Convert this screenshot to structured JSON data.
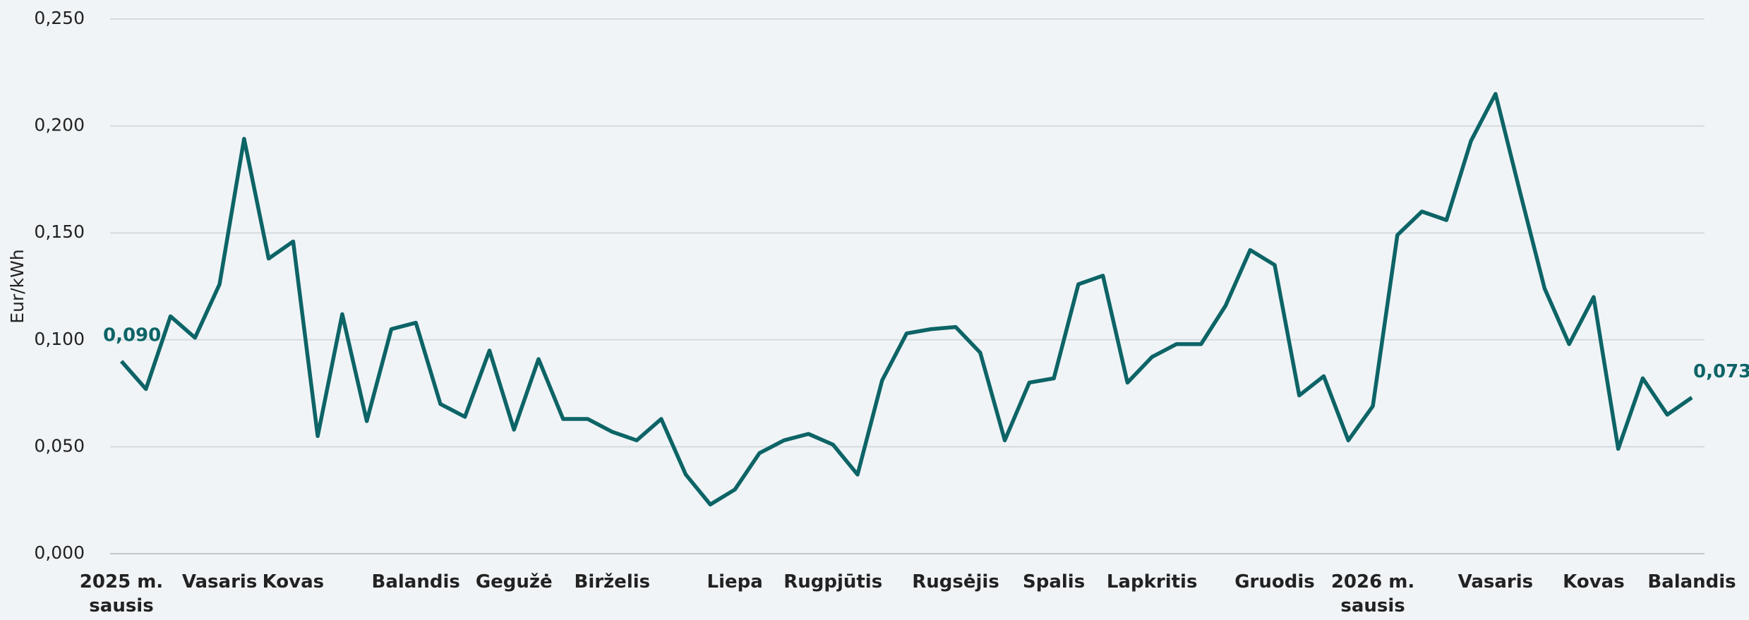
{
  "chart_data": {
    "type": "line",
    "y_label": "Eur/kWh",
    "categories": [
      "2025 m. sausis",
      null,
      null,
      null,
      "Vasaris",
      null,
      null,
      "Kovas",
      null,
      null,
      null,
      null,
      "Balandis",
      null,
      null,
      null,
      "Gegužė",
      null,
      null,
      null,
      "Birželis",
      null,
      null,
      null,
      null,
      "Liepa",
      null,
      null,
      null,
      "Rugpjūtis",
      null,
      null,
      null,
      null,
      "Rugsėjis",
      null,
      null,
      null,
      "Spalis",
      null,
      null,
      null,
      "Lapkritis",
      null,
      null,
      null,
      null,
      "Gruodis",
      null,
      null,
      null,
      "2026 m. sausis",
      null,
      null,
      null,
      null,
      "Vasaris",
      null,
      null,
      null,
      "Kovas",
      null,
      null,
      null,
      "Balandis"
    ],
    "series": [
      {
        "name": null,
        "color": "#0d6466",
        "values": [
          0.09,
          0.077,
          0.111,
          0.101,
          0.126,
          0.194,
          0.138,
          0.146,
          0.055,
          0.112,
          0.062,
          0.105,
          0.108,
          0.07,
          0.064,
          0.095,
          0.058,
          0.091,
          0.063,
          0.063,
          0.057,
          0.053,
          0.063,
          0.037,
          0.023,
          0.03,
          0.047,
          0.053,
          0.056,
          0.051,
          0.037,
          0.081,
          0.103,
          0.105,
          0.106,
          0.094,
          0.053,
          0.08,
          0.082,
          0.126,
          0.13,
          0.08,
          0.092,
          0.098,
          0.098,
          0.116,
          0.142,
          0.135,
          0.074,
          0.083,
          0.053,
          0.069,
          0.149,
          0.16,
          0.156,
          0.193,
          0.215,
          0.169,
          0.124,
          0.098,
          0.12,
          0.049,
          0.082,
          0.065,
          0.073
        ],
        "value_labels": [
          "0,090",
          null,
          null,
          null,
          null,
          null,
          null,
          null,
          null,
          null,
          null,
          null,
          null,
          null,
          null,
          null,
          null,
          null,
          null,
          null,
          null,
          null,
          null,
          null,
          null,
          null,
          null,
          null,
          null,
          null,
          null,
          null,
          null,
          null,
          null,
          null,
          null,
          null,
          null,
          null,
          null,
          null,
          null,
          null,
          null,
          null,
          null,
          null,
          null,
          null,
          null,
          null,
          null,
          null,
          null,
          null,
          null,
          null,
          null,
          null,
          null,
          null,
          null,
          null,
          "0,073"
        ]
      }
    ],
    "ylim": [
      0,
      0.25
    ],
    "yticks": [
      {
        "value": 0,
        "label": "0,000"
      },
      {
        "value": 0.05,
        "label": "0,050"
      },
      {
        "value": 0.1,
        "label": "0,100"
      },
      {
        "value": 0.15,
        "label": "0,150"
      },
      {
        "value": 0.2,
        "label": "0,200"
      },
      {
        "value": 0.25,
        "label": "0,250"
      }
    ],
    "grid": true
  }
}
